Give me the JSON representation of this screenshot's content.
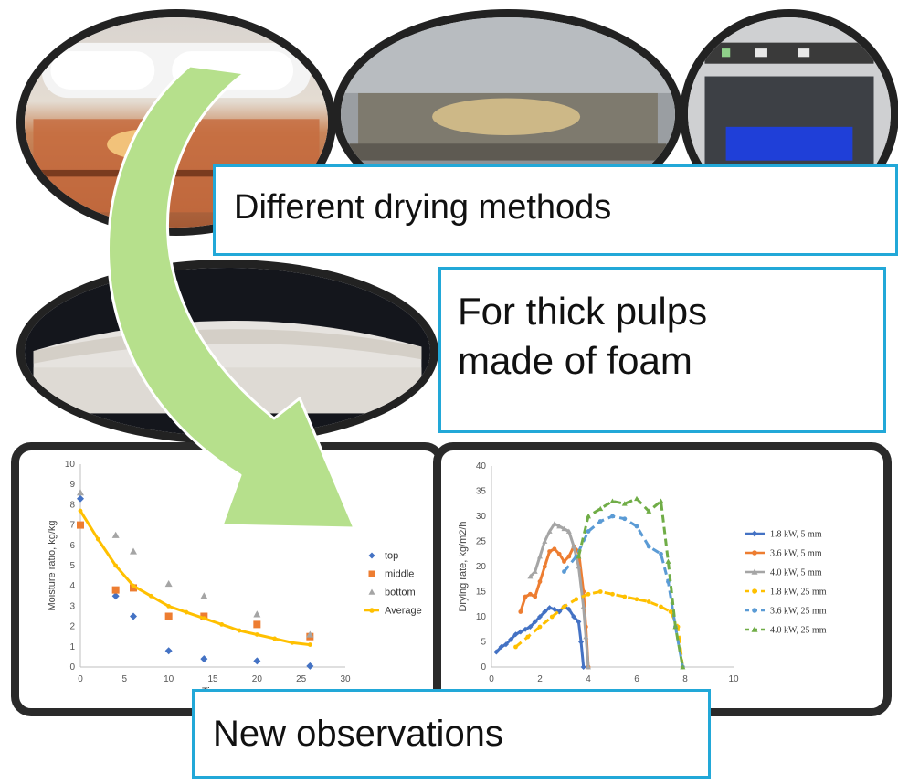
{
  "callouts": {
    "methods": "Different drying methods",
    "pulps_line1": "For thick pulps",
    "pulps_line2": "made of foam",
    "observations": "New observations"
  },
  "colors": {
    "callout_border": "#22a8d8",
    "arrow_fill": "#b6e08c",
    "frame": "#2a2a2a"
  },
  "chart_data": [
    {
      "type": "scatter",
      "title": "",
      "xlabel": "Time",
      "ylabel": "Moisture ratio, kg/kg",
      "xlim": [
        0,
        30
      ],
      "ylim": [
        0,
        10
      ],
      "x_ticks": [
        "0",
        "5",
        "10",
        "15",
        "20",
        "25",
        "30"
      ],
      "y_ticks": [
        "0",
        "1",
        "2",
        "3",
        "4",
        "5",
        "6",
        "7",
        "8",
        "9",
        "10"
      ],
      "legend_position": "right",
      "series": [
        {
          "name": "top",
          "color": "#4472c4",
          "marker": "diamond",
          "x": [
            0,
            4,
            6,
            10,
            14,
            20,
            26
          ],
          "y": [
            8.3,
            3.5,
            2.5,
            0.8,
            0.4,
            0.3,
            0.05
          ]
        },
        {
          "name": "middle",
          "color": "#ed7d31",
          "marker": "square",
          "x": [
            0,
            4,
            6,
            10,
            14,
            20,
            26
          ],
          "y": [
            7.0,
            3.8,
            3.9,
            2.5,
            2.5,
            2.1,
            1.5
          ]
        },
        {
          "name": "bottom",
          "color": "#a5a5a5",
          "marker": "triangle",
          "x": [
            0,
            4,
            6,
            10,
            14,
            20,
            26
          ],
          "y": [
            8.6,
            6.5,
            5.7,
            4.1,
            3.5,
            2.6,
            1.6
          ]
        },
        {
          "name": "Average",
          "color": "#ffc000",
          "marker": "circle",
          "line": true,
          "x": [
            0,
            2,
            4,
            6,
            8,
            10,
            12,
            14,
            16,
            18,
            20,
            22,
            24,
            26
          ],
          "y": [
            7.7,
            6.3,
            5.0,
            4.0,
            3.5,
            3.0,
            2.7,
            2.4,
            2.1,
            1.8,
            1.6,
            1.4,
            1.2,
            1.1
          ]
        }
      ]
    },
    {
      "type": "line",
      "title": "",
      "xlabel": "",
      "ylabel": "Drying rate, kg/m2/h",
      "xlim": [
        0,
        10
      ],
      "ylim": [
        0,
        40
      ],
      "x_ticks": [
        "0",
        "2",
        "4",
        "6",
        "8",
        "10"
      ],
      "y_ticks": [
        "0",
        "5",
        "10",
        "15",
        "20",
        "25",
        "30",
        "35",
        "40"
      ],
      "legend_position": "right",
      "series": [
        {
          "name": "1.8 kW, 5 mm",
          "color": "#4472c4",
          "dash": false,
          "marker": "diamond",
          "x": [
            0.2,
            0.4,
            0.6,
            0.8,
            1.0,
            1.2,
            1.4,
            1.6,
            1.8,
            2.0,
            2.2,
            2.4,
            2.6,
            2.8,
            3.0,
            3.2,
            3.4,
            3.6,
            3.7,
            3.8
          ],
          "y": [
            3,
            4,
            4.5,
            5.5,
            6.5,
            7,
            7.5,
            8,
            9,
            10,
            11,
            11.8,
            11.5,
            11,
            12,
            11.5,
            10,
            9,
            5,
            0
          ]
        },
        {
          "name": "3.6 kW, 5 mm",
          "color": "#ed7d31",
          "dash": false,
          "marker": "circle",
          "x": [
            1.2,
            1.4,
            1.6,
            1.8,
            2.0,
            2.2,
            2.4,
            2.6,
            2.8,
            3.0,
            3.2,
            3.4,
            3.6,
            3.8,
            3.9,
            4.0
          ],
          "y": [
            11,
            14,
            14.5,
            14,
            17,
            20,
            23,
            23.5,
            22.5,
            21,
            22,
            24,
            23,
            15,
            8,
            0
          ]
        },
        {
          "name": "4.0 kW, 5 mm",
          "color": "#a5a5a5",
          "dash": false,
          "marker": "triangle",
          "x": [
            1.6,
            1.8,
            2.0,
            2.2,
            2.4,
            2.6,
            2.8,
            3.0,
            3.2,
            3.4,
            3.6,
            3.8,
            3.9,
            4.0
          ],
          "y": [
            18,
            19,
            22,
            25,
            27,
            28.5,
            28,
            27.5,
            27,
            24,
            20,
            12,
            6,
            0
          ]
        },
        {
          "name": "1.8 kW, 25 mm",
          "color": "#ffc000",
          "dash": true,
          "marker": "circle",
          "x": [
            1.0,
            1.5,
            2.0,
            2.5,
            3.0,
            3.5,
            4.0,
            4.5,
            5.0,
            5.5,
            6.0,
            6.5,
            7.0,
            7.4,
            7.7,
            7.9
          ],
          "y": [
            4,
            6,
            8,
            10,
            12,
            13.5,
            14.5,
            15,
            14.5,
            14,
            13.5,
            13,
            12,
            11,
            8,
            0
          ]
        },
        {
          "name": "3.6 kW, 25 mm",
          "color": "#5b9bd5",
          "dash": true,
          "marker": "circle",
          "x": [
            3.0,
            3.5,
            4.0,
            4.5,
            5.0,
            5.5,
            6.0,
            6.5,
            7.0,
            7.3,
            7.6,
            7.9
          ],
          "y": [
            19,
            22,
            27,
            29,
            30,
            29.5,
            28,
            24,
            22.5,
            17,
            8,
            0
          ]
        },
        {
          "name": "4.0 kW, 25 mm",
          "color": "#70ad47",
          "dash": true,
          "marker": "triangle",
          "x": [
            3.6,
            4.0,
            4.5,
            5.0,
            5.5,
            6.0,
            6.5,
            7.0,
            7.3,
            7.6,
            7.9
          ],
          "y": [
            22,
            30,
            31.5,
            33,
            32.5,
            33.5,
            31,
            33,
            21,
            8,
            0
          ]
        }
      ]
    }
  ]
}
